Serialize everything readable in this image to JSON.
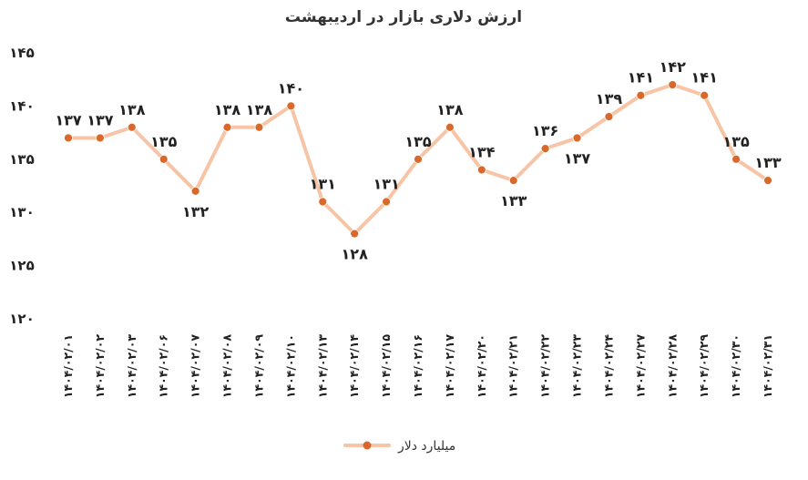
{
  "chart_data": {
    "type": "line",
    "title": "ارزش دلاری بازار در اردیبهشت",
    "xlabel": "",
    "ylabel": "",
    "ylim": [
      120,
      145
    ],
    "yticks": [
      120,
      125,
      130,
      135,
      140,
      145
    ],
    "ytick_labels": [
      "۱۲۰",
      "۱۲۵",
      "۱۳۰",
      "۱۳۵",
      "۱۴۰",
      "۱۴۵"
    ],
    "categories": [
      "۱۴۰۴/۰۲/۰۱",
      "۱۴۰۴/۰۲/۰۲",
      "۱۴۰۴/۰۲/۰۳",
      "۱۴۰۴/۰۲/۰۶",
      "۱۴۰۴/۰۲/۰۷",
      "۱۴۰۴/۰۲/۰۸",
      "۱۴۰۴/۰۲/۰۹",
      "۱۴۰۴/۰۲/۱۰",
      "۱۴۰۴/۰۲/۱۳",
      "۱۴۰۴/۰۲/۱۴",
      "۱۴۰۴/۰۲/۱۵",
      "۱۴۰۴/۰۲/۱۶",
      "۱۴۰۴/۰۲/۱۷",
      "۱۴۰۴/۰۲/۲۰",
      "۱۴۰۴/۰۲/۲۱",
      "۱۴۰۴/۰۲/۲۲",
      "۱۴۰۴/۰۲/۲۳",
      "۱۴۰۴/۰۲/۲۴",
      "۱۴۰۴/۰۲/۲۷",
      "۱۴۰۴/۰۲/۲۸",
      "۱۴۰۴/۰۲/۲۹",
      "۱۴۰۴/۰۲/۳۰",
      "۱۴۰۴/۰۲/۳۱"
    ],
    "series": [
      {
        "name": "میلیارد دلار",
        "values": [
          137,
          137,
          138,
          135,
          132,
          138,
          138,
          140,
          131,
          128,
          131,
          135,
          138,
          134,
          133,
          136,
          137,
          139,
          141,
          142,
          141,
          135,
          133
        ],
        "labels": [
          "۱۳۷",
          "۱۳۷",
          "۱۳۸",
          "۱۳۵",
          "۱۳۲",
          "۱۳۸",
          "۱۳۸",
          "۱۴۰",
          "۱۳۱",
          "۱۲۸",
          "۱۳۱",
          "۱۳۵",
          "۱۳۸",
          "۱۳۴",
          "۱۳۳",
          "۱۳۶",
          "۱۳۷",
          "۱۳۹",
          "۱۴۱",
          "۱۴۲",
          "۱۴۱",
          "۱۳۵",
          "۱۳۳"
        ],
        "line_color": "#f7c4a5",
        "marker_color": "#d9692b"
      }
    ],
    "grid": false,
    "legend": "bottom"
  }
}
